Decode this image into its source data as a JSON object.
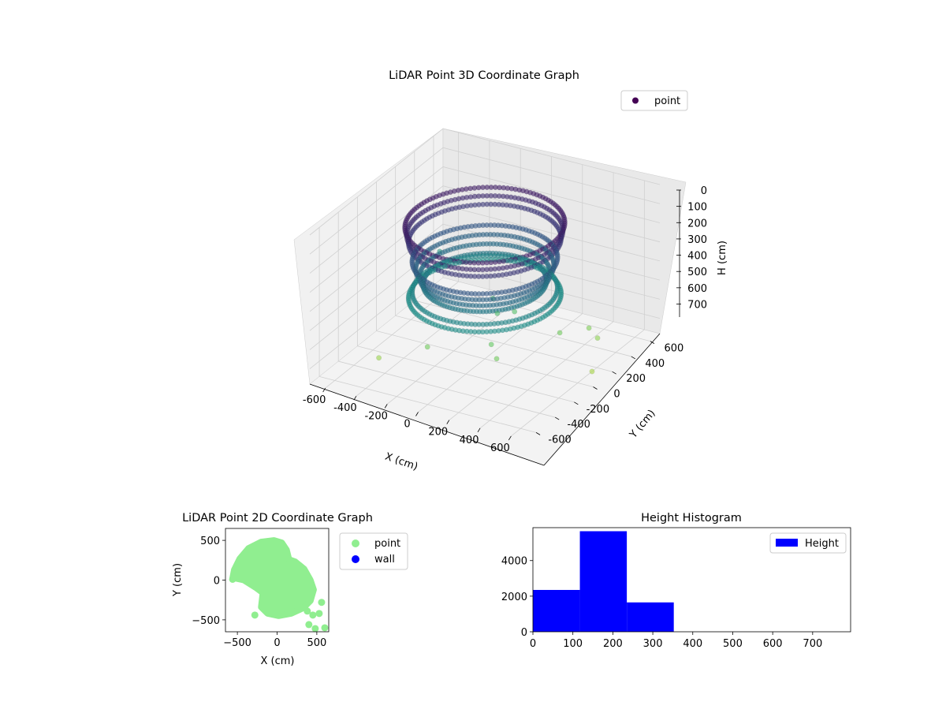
{
  "chart_data": [
    {
      "type": "scatter",
      "projection": "3d",
      "title": "LiDAR Point 3D Coordinate Graph",
      "xlabel": "X (cm)",
      "ylabel": "Y (cm)",
      "zlabel": "H (cm)",
      "xlim": [
        -700,
        700
      ],
      "ylim": [
        -700,
        700
      ],
      "zlim": [
        0,
        780
      ],
      "z_inverted": true,
      "x_ticks": [
        "-600",
        "-400",
        "-200",
        "0",
        "200",
        "400",
        "600"
      ],
      "y_ticks": [
        "600",
        "400",
        "200",
        "0",
        "-200",
        "-400",
        "-600"
      ],
      "z_ticks": [
        "0",
        "100",
        "200",
        "300",
        "400",
        "500",
        "600",
        "700"
      ],
      "grid": true,
      "colormap": "viridis",
      "legend": {
        "placement": "top-right",
        "entries": [
          "point"
        ],
        "colors": [
          "#440154"
        ]
      },
      "series": [
        {
          "name": "point",
          "shape": "ring",
          "rings": [
            {
              "radius": 440,
              "h": 80
            },
            {
              "radius": 430,
              "h": 120
            },
            {
              "radius": 420,
              "h": 160
            },
            {
              "radius": 400,
              "h": 260
            },
            {
              "radius": 380,
              "h": 300
            },
            {
              "radius": 360,
              "h": 340
            },
            {
              "radius": 340,
              "h": 380
            },
            {
              "radius": 400,
              "h": 420
            },
            {
              "radius": 420,
              "h": 450
            }
          ],
          "outliers": [
            {
              "x": -550,
              "y": 420,
              "h": 500
            },
            {
              "x": -30,
              "y": 180,
              "h": 620
            },
            {
              "x": -120,
              "y": 280,
              "h": 600
            },
            {
              "x": 60,
              "y": -30,
              "h": 680
            },
            {
              "x": 150,
              "y": -120,
              "h": 700
            },
            {
              "x": 20,
              "y": 280,
              "h": 640
            },
            {
              "x": -260,
              "y": -180,
              "h": 700
            },
            {
              "x": 300,
              "y": 300,
              "h": 700
            },
            {
              "x": 390,
              "y": 460,
              "h": 720
            },
            {
              "x": 470,
              "y": 420,
              "h": 740
            },
            {
              "x": -500,
              "y": -300,
              "h": 760
            },
            {
              "x": 600,
              "y": 150,
              "h": 780
            }
          ]
        }
      ]
    },
    {
      "type": "scatter",
      "title": "LiDAR Point 2D Coordinate Graph",
      "xlabel": "X (cm)",
      "ylabel": "Y (cm)",
      "xlim": [
        -650,
        650
      ],
      "ylim": [
        -650,
        650
      ],
      "x_ticks": [
        -500,
        0,
        500
      ],
      "y_ticks": [
        500,
        0,
        -500
      ],
      "legend": {
        "placement": "outside-right",
        "entries": [
          "point",
          "wall"
        ],
        "colors": [
          "#90ee90",
          "#0000ff"
        ]
      },
      "series": [
        {
          "name": "point",
          "color": "#90ee90",
          "cloud_outline": [
            [
              -200,
              480
            ],
            [
              -40,
              500
            ],
            [
              60,
              470
            ],
            [
              120,
              380
            ],
            [
              150,
              260
            ],
            [
              230,
              230
            ],
            [
              340,
              140
            ],
            [
              420,
              0
            ],
            [
              460,
              -120
            ],
            [
              420,
              -260
            ],
            [
              330,
              -350
            ],
            [
              180,
              -420
            ],
            [
              20,
              -450
            ],
            [
              -120,
              -420
            ],
            [
              -200,
              -340
            ],
            [
              -180,
              -160
            ],
            [
              -260,
              -100
            ],
            [
              -420,
              0
            ],
            [
              -560,
              30
            ],
            [
              -540,
              130
            ],
            [
              -470,
              270
            ],
            [
              -360,
              400
            ]
          ],
          "outliers": [
            [
              -280,
              -440
            ],
            [
              450,
              -440
            ],
            [
              380,
              -390
            ],
            [
              480,
              -610
            ],
            [
              560,
              -280
            ],
            [
              400,
              -560
            ],
            [
              600,
              -600
            ],
            [
              -560,
              10
            ],
            [
              530,
              -420
            ]
          ]
        },
        {
          "name": "wall",
          "color": "#0000ff",
          "values": []
        }
      ]
    },
    {
      "type": "bar",
      "subtype": "histogram",
      "title": "Height Histogram",
      "xlim": [
        0,
        795
      ],
      "ylim": [
        0,
        5850
      ],
      "x_ticks": [
        0,
        100,
        200,
        300,
        400,
        500,
        600,
        700
      ],
      "y_ticks": [
        0,
        2000,
        4000
      ],
      "legend": {
        "placement": "top-right",
        "entries": [
          "Height"
        ],
        "colors": [
          "#0000ff"
        ]
      },
      "series": [
        {
          "name": "Height",
          "color": "#0000ff",
          "bins": [
            {
              "x0": 0,
              "x1": 117.5,
              "count": 2350
            },
            {
              "x0": 117.5,
              "x1": 235,
              "count": 5650
            },
            {
              "x0": 235,
              "x1": 352.5,
              "count": 1650
            }
          ]
        }
      ]
    }
  ]
}
